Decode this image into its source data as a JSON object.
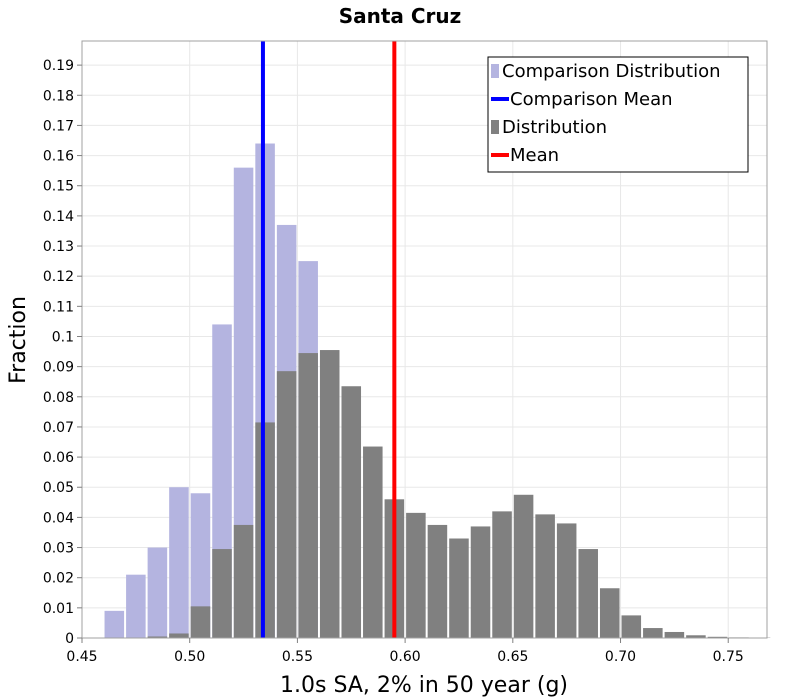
{
  "chart_data": {
    "type": "bar",
    "title": "Santa Cruz",
    "xlabel": "1.0s SA, 2% in 50 year (g)",
    "ylabel": "Fraction",
    "xlim": [
      0.45,
      0.768
    ],
    "ylim": [
      0,
      0.198
    ],
    "bin_width": 0.01,
    "x_ticks": [
      {
        "value": 0.45,
        "label": "0.45"
      },
      {
        "value": 0.5,
        "label": "0.50"
      },
      {
        "value": 0.55,
        "label": "0.55"
      },
      {
        "value": 0.6,
        "label": "0.60"
      },
      {
        "value": 0.65,
        "label": "0.65"
      },
      {
        "value": 0.7,
        "label": "0.70"
      },
      {
        "value": 0.75,
        "label": "0.75"
      }
    ],
    "y_ticks": [
      {
        "value": 0,
        "label": "0"
      },
      {
        "value": 0.01,
        "label": "0.01"
      },
      {
        "value": 0.02,
        "label": "0.02"
      },
      {
        "value": 0.03,
        "label": "0.03"
      },
      {
        "value": 0.04,
        "label": "0.04"
      },
      {
        "value": 0.05,
        "label": "0.05"
      },
      {
        "value": 0.06,
        "label": "0.06"
      },
      {
        "value": 0.07,
        "label": "0.07"
      },
      {
        "value": 0.08,
        "label": "0.08"
      },
      {
        "value": 0.09,
        "label": "0.09"
      },
      {
        "value": 0.1,
        "label": "0.1"
      },
      {
        "value": 0.11,
        "label": "0.11"
      },
      {
        "value": 0.12,
        "label": "0.12"
      },
      {
        "value": 0.13,
        "label": "0.13"
      },
      {
        "value": 0.14,
        "label": "0.14"
      },
      {
        "value": 0.15,
        "label": "0.15"
      },
      {
        "value": 0.16,
        "label": "0.16"
      },
      {
        "value": 0.17,
        "label": "0.17"
      },
      {
        "value": 0.18,
        "label": "0.18"
      },
      {
        "value": 0.19,
        "label": "0.19"
      }
    ],
    "series": [
      {
        "name": "Comparison Distribution",
        "kind": "histogram",
        "color": "#b4b4e0",
        "bins": [
          {
            "x": 0.465,
            "y": 0.009
          },
          {
            "x": 0.475,
            "y": 0.021
          },
          {
            "x": 0.485,
            "y": 0.03
          },
          {
            "x": 0.495,
            "y": 0.05
          },
          {
            "x": 0.505,
            "y": 0.048
          },
          {
            "x": 0.515,
            "y": 0.104
          },
          {
            "x": 0.525,
            "y": 0.156
          },
          {
            "x": 0.535,
            "y": 0.164
          },
          {
            "x": 0.545,
            "y": 0.137
          },
          {
            "x": 0.555,
            "y": 0.125
          }
        ]
      },
      {
        "name": "Distribution",
        "kind": "histogram",
        "color": "#808080",
        "bins": [
          {
            "x": 0.485,
            "y": 0.0005
          },
          {
            "x": 0.495,
            "y": 0.0015
          },
          {
            "x": 0.505,
            "y": 0.0105
          },
          {
            "x": 0.515,
            "y": 0.0295
          },
          {
            "x": 0.525,
            "y": 0.0375
          },
          {
            "x": 0.535,
            "y": 0.0715
          },
          {
            "x": 0.545,
            "y": 0.0885
          },
          {
            "x": 0.555,
            "y": 0.0945
          },
          {
            "x": 0.565,
            "y": 0.0955
          },
          {
            "x": 0.575,
            "y": 0.0835
          },
          {
            "x": 0.585,
            "y": 0.0635
          },
          {
            "x": 0.595,
            "y": 0.046
          },
          {
            "x": 0.605,
            "y": 0.0415
          },
          {
            "x": 0.615,
            "y": 0.0375
          },
          {
            "x": 0.625,
            "y": 0.033
          },
          {
            "x": 0.635,
            "y": 0.037
          },
          {
            "x": 0.645,
            "y": 0.042
          },
          {
            "x": 0.655,
            "y": 0.0475
          },
          {
            "x": 0.665,
            "y": 0.041
          },
          {
            "x": 0.675,
            "y": 0.038
          },
          {
            "x": 0.685,
            "y": 0.0295
          },
          {
            "x": 0.695,
            "y": 0.0165
          },
          {
            "x": 0.705,
            "y": 0.0075
          },
          {
            "x": 0.715,
            "y": 0.0033
          },
          {
            "x": 0.725,
            "y": 0.002
          },
          {
            "x": 0.735,
            "y": 0.0009
          },
          {
            "x": 0.745,
            "y": 0.0004
          },
          {
            "x": 0.755,
            "y": 0.0002
          },
          {
            "x": 0.765,
            "y": 0.0001
          }
        ]
      },
      {
        "name": "Comparison Mean",
        "kind": "vline",
        "color": "#0000ff",
        "x": 0.534
      },
      {
        "name": "Mean",
        "kind": "vline",
        "color": "#ff0000",
        "x": 0.595
      }
    ],
    "legend": {
      "position": "top-right",
      "entries": [
        {
          "label": "Comparison Distribution",
          "marker": "bar",
          "color": "#b4b4e0"
        },
        {
          "label": "Comparison Mean",
          "marker": "line",
          "color": "#0000ff"
        },
        {
          "label": "Distribution",
          "marker": "bar",
          "color": "#808080"
        },
        {
          "label": "Mean",
          "marker": "line",
          "color": "#ff0000"
        }
      ]
    },
    "grid": true
  }
}
